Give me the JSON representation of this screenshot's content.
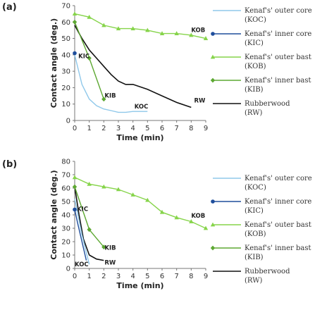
{
  "chart_data": [
    {
      "panel": "(a)",
      "type": "line",
      "xlabel": "Time (min)",
      "ylabel": "Contact angle (deg.)",
      "xlim": [
        0,
        9
      ],
      "ylim": [
        0,
        70
      ],
      "xticks": [
        "0",
        "1",
        "2",
        "3",
        "4",
        "5",
        "6",
        "7",
        "8",
        "9"
      ],
      "yticks": [
        "0",
        "10",
        "20",
        "30",
        "40",
        "50",
        "60",
        "70"
      ],
      "series": [
        {
          "id": "koc",
          "name": "Kenaf's' outer core (KOC)",
          "label": "KOC",
          "color": "#8fc8ea",
          "marker": "line",
          "x": [
            0,
            0.5,
            1,
            1.5,
            2,
            2.5,
            3,
            3.5,
            4,
            4.5,
            5
          ],
          "y": [
            40,
            22,
            13,
            9,
            7,
            6,
            5,
            5,
            5.5,
            5.5,
            5.5
          ]
        },
        {
          "id": "kic",
          "name": "Kenaf's' inner core (KIC)",
          "label": "KIC",
          "color": "#1f4e9c",
          "marker": "circle",
          "x": [
            0
          ],
          "y": [
            41
          ]
        },
        {
          "id": "kob",
          "name": "Kenaf's' outer bast (KOB)",
          "label": "KOB",
          "color": "#86d44a",
          "marker": "triangle",
          "x": [
            0,
            1,
            2,
            3,
            4,
            5,
            6,
            7,
            8,
            9
          ],
          "y": [
            65,
            63,
            58,
            56,
            56,
            55,
            53,
            53,
            52,
            50
          ]
        },
        {
          "id": "kib",
          "name": "Kenaf's' inner bast (KIB)",
          "label": "KIB",
          "color": "#5da832",
          "marker": "diamond",
          "x": [
            0,
            1,
            2
          ],
          "y": [
            60,
            38,
            13
          ]
        },
        {
          "id": "rw",
          "name": "Rubberwood (RW)",
          "label": "RW",
          "color": "#111111",
          "marker": "line",
          "x": [
            0,
            0.5,
            1,
            1.5,
            2,
            2.5,
            3,
            3.5,
            4,
            5,
            6,
            7,
            8
          ],
          "y": [
            58,
            50,
            43,
            38,
            33,
            28,
            24,
            22,
            22,
            19,
            15,
            11,
            8
          ]
        }
      ]
    },
    {
      "panel": "(b)",
      "type": "line",
      "xlabel": "Time (min)",
      "ylabel": "Contact angle (deg.)",
      "xlim": [
        0,
        9
      ],
      "ylim": [
        0,
        80
      ],
      "xticks": [
        "0",
        "1",
        "2",
        "3",
        "4",
        "5",
        "6",
        "7",
        "8",
        "9"
      ],
      "yticks": [
        "0",
        "10",
        "20",
        "30",
        "40",
        "50",
        "60",
        "70",
        "80"
      ],
      "series": [
        {
          "id": "koc",
          "name": "Kenaf's' outer core (KOC)",
          "label": "KOC",
          "color": "#8fc8ea",
          "marker": "line",
          "x": [
            0,
            0.5,
            1
          ],
          "y": [
            52,
            25,
            3
          ]
        },
        {
          "id": "kic",
          "name": "Kenaf's' inner core (KIC)",
          "label": "KIC",
          "color": "#1f4e9c",
          "marker": "circle",
          "x": [
            0,
            0.2,
            0.5,
            0.8
          ],
          "y": [
            44,
            34,
            20,
            6
          ]
        },
        {
          "id": "kob",
          "name": "Kenaf's' outer bast (KOB)",
          "label": "KOB",
          "color": "#86d44a",
          "marker": "triangle",
          "x": [
            0,
            1,
            2,
            3,
            4,
            5,
            6,
            7,
            8,
            9
          ],
          "y": [
            68,
            63,
            61,
            59,
            55,
            51,
            42,
            38,
            35,
            30
          ]
        },
        {
          "id": "kib",
          "name": "Kenaf's' inner bast (KIB)",
          "label": "KIB",
          "color": "#5da832",
          "marker": "diamond",
          "x": [
            0,
            1,
            2
          ],
          "y": [
            61,
            29,
            16
          ]
        },
        {
          "id": "rw",
          "name": "Rubberwood (RW)",
          "label": "RW",
          "color": "#111111",
          "marker": "line",
          "x": [
            0,
            0.3,
            0.6,
            1,
            1.5,
            2
          ],
          "y": [
            61,
            40,
            22,
            10,
            7,
            6
          ]
        }
      ]
    }
  ]
}
